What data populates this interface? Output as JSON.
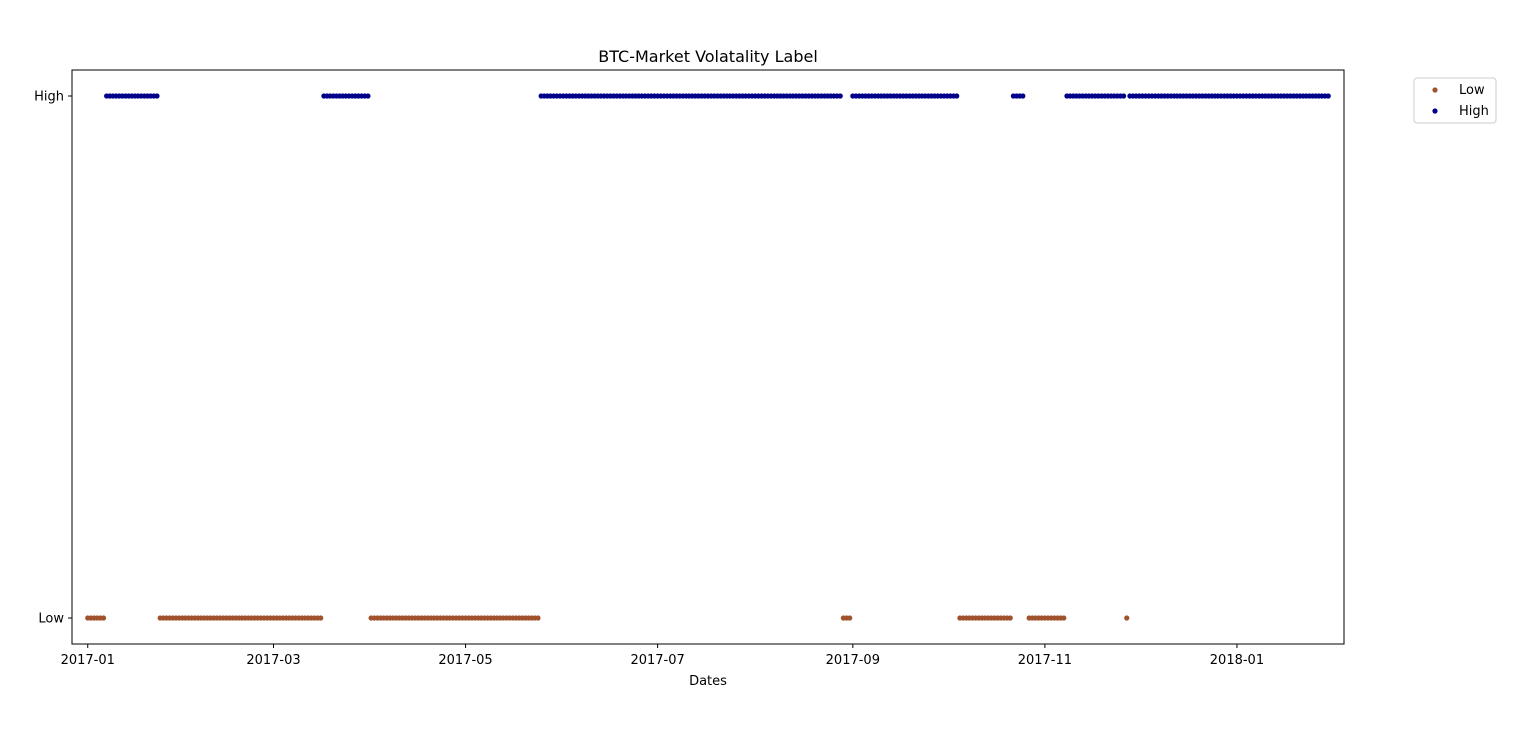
{
  "chart_data": {
    "type": "scatter",
    "title": "BTC-Market Volatality Label",
    "xlabel": "Dates",
    "ylabel": "",
    "x_axis": "date",
    "xlim": [
      "2016-12-27",
      "2018-02-04"
    ],
    "x_ticks": [
      "2017-01",
      "2017-03",
      "2017-05",
      "2017-07",
      "2017-09",
      "2017-11",
      "2018-01"
    ],
    "y_categories": [
      "Low",
      "High"
    ],
    "grid": false,
    "legend_position": "outside-top-right",
    "series": [
      {
        "name": "Low",
        "color": "#a0522d",
        "y": "Low",
        "date_ranges": [
          [
            "2017-01-01",
            "2017-01-06"
          ],
          [
            "2017-01-24",
            "2017-03-16"
          ],
          [
            "2017-04-01",
            "2017-05-24"
          ],
          [
            "2017-08-29",
            "2017-08-31"
          ],
          [
            "2017-10-05",
            "2017-10-21"
          ],
          [
            "2017-10-27",
            "2017-11-07"
          ],
          [
            "2017-11-27",
            "2017-11-27"
          ]
        ]
      },
      {
        "name": "High",
        "color": "#00008b",
        "y": "High",
        "date_ranges": [
          [
            "2017-01-07",
            "2017-01-23"
          ],
          [
            "2017-03-17",
            "2017-03-31"
          ],
          [
            "2017-05-25",
            "2017-08-28"
          ],
          [
            "2017-09-01",
            "2017-10-04"
          ],
          [
            "2017-10-22",
            "2017-10-25"
          ],
          [
            "2017-11-08",
            "2017-11-26"
          ],
          [
            "2017-11-28",
            "2018-01-30"
          ]
        ]
      }
    ]
  }
}
